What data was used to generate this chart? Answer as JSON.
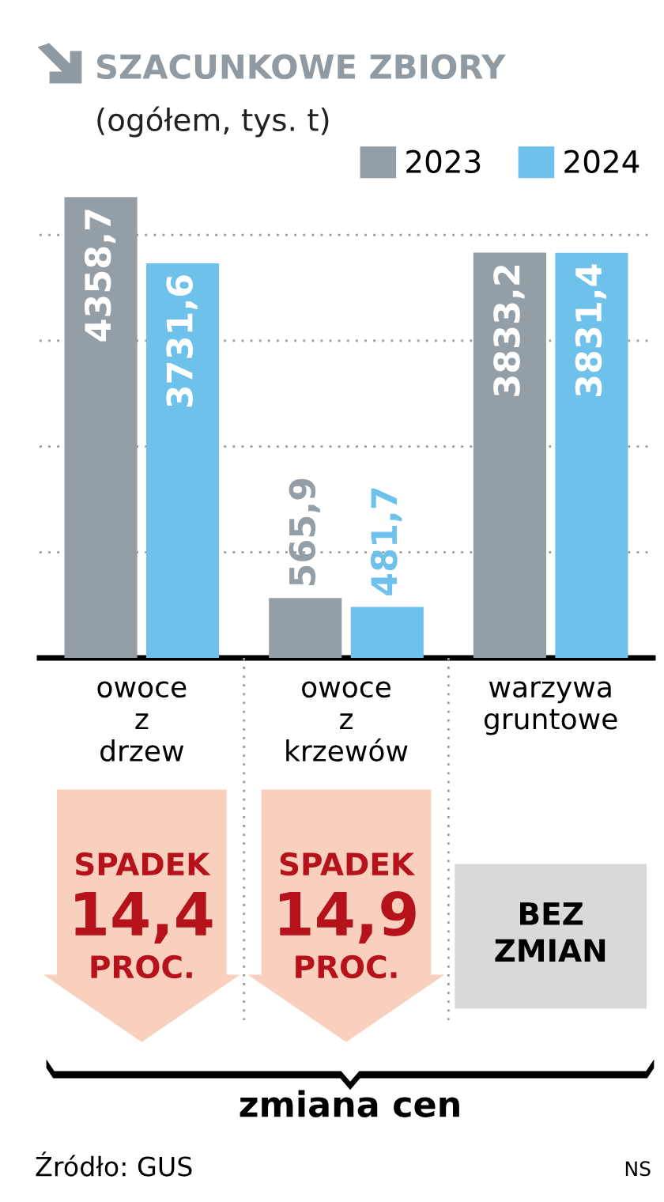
{
  "chart_data": {
    "type": "bar",
    "title": "SZACUNKOWE ZBIORY",
    "subtitle": "(ogółem, tys. t)",
    "categories": [
      "owoce\nz\ndrzew",
      "owoce\nz\nkrzewów",
      "warzywa\ngruntowe"
    ],
    "series": [
      {
        "name": "2023",
        "color": "#939ea6",
        "values": [
          4358.7,
          565.9,
          3833.2
        ],
        "value_labels": [
          "4358,7",
          "565,9",
          "3833,2"
        ]
      },
      {
        "name": "2024",
        "color": "#6ec1ea",
        "values": [
          3731.6,
          481.7,
          3831.4
        ],
        "value_labels": [
          "3731,6",
          "481,7",
          "3831,4"
        ]
      }
    ],
    "grid": "y",
    "tick_labels": "x",
    "legend": "top right",
    "annotations": [
      "SPADEK\n14,4\nPROC.",
      "SPADEK\n14,9\nPROC.",
      "BEZ\nZMIAN",
      "zmiana cen",
      "Źródło: GUS",
      "NS"
    ]
  }
}
